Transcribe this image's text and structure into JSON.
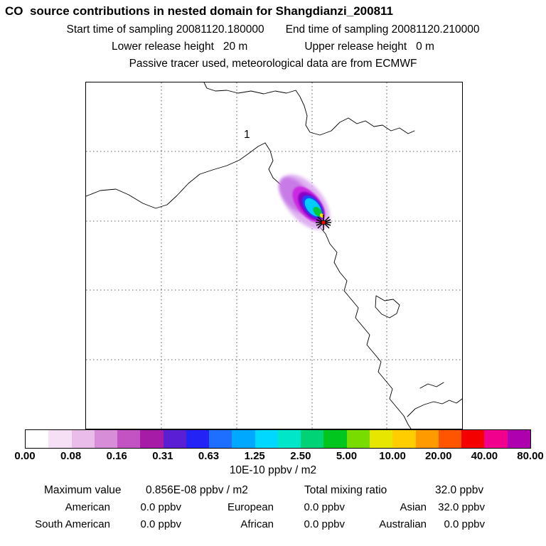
{
  "title": "CO  source contributions in nested domain for Shangdianzi_200811",
  "subtitle": {
    "start": "Start time of sampling 20081120.180000",
    "end": "End time of sampling 20081120.210000",
    "lower": "Lower release height   20 m",
    "upper": "Upper release height   0 m",
    "tracer": "Passive tracer used, meteorological data are from ECMWF"
  },
  "map": {
    "region_label": "1"
  },
  "colorbar": {
    "units": "10E-10 ppbv / m2",
    "tick_labels": [
      "0.00",
      "0.08",
      "0.16",
      "0.31",
      "0.63",
      "1.25",
      "2.50",
      "5.00",
      "10.00",
      "20.00",
      "40.00",
      "80.00"
    ],
    "colors": [
      "#ffffff",
      "#f6e0f6",
      "#e9bce9",
      "#d88dd8",
      "#c353c3",
      "#a61ca6",
      "#5a1fd2",
      "#2323f5",
      "#1e6eff",
      "#00a8ff",
      "#00d8ff",
      "#00e6c8",
      "#00d276",
      "#00c61e",
      "#78dc00",
      "#e6e600",
      "#ffcd00",
      "#ff9a00",
      "#ff5500",
      "#f50000",
      "#f0008c",
      "#ae00ae"
    ]
  },
  "stats": {
    "max_label": "Maximum value",
    "max_value": "0.856E-08 ppbv / m2",
    "total_label": "Total mixing ratio",
    "total_value": "32.0 ppbv",
    "contributions": [
      {
        "label": "American",
        "value": "0.0 ppbv"
      },
      {
        "label": "European",
        "value": "0.0 ppbv"
      },
      {
        "label": "Asian",
        "value": "32.0 ppbv"
      },
      {
        "label": "South American",
        "value": "0.0 ppbv"
      },
      {
        "label": "African",
        "value": "0.0 ppbv"
      },
      {
        "label": "Australian",
        "value": "0.0 ppbv"
      }
    ]
  },
  "chart_data": {
    "type": "heatmap",
    "title": "CO source contributions in nested domain for Shangdianzi_200811",
    "sampling_start": "20081120.180000",
    "sampling_end": "20081120.210000",
    "lower_release_height": "20 m",
    "upper_release_height": "0 m",
    "tracer_note": "Passive tracer used, meteorological data are from ECMWF",
    "colorbar_levels": [
      0.0,
      0.08,
      0.16,
      0.31,
      0.63,
      1.25,
      2.5,
      5.0,
      10.0,
      20.0,
      40.0,
      80.0
    ],
    "colorbar_units": "10E-10 ppbv / m2",
    "maximum_value": "0.856E-08 ppbv / m2",
    "total_mixing_ratio_ppbv": 32.0,
    "regional_contributions_ppbv": {
      "American": 0.0,
      "European": 0.0,
      "Asian": 32.0,
      "South American": 0.0,
      "African": 0.0,
      "Australian": 0.0
    },
    "map_annotation": "1",
    "legend_position": "bottom",
    "grid": "dashed 5x5 graticule",
    "plume_note": "Compact NW-SE concentration plume ending at star-marked receptor near map center"
  }
}
